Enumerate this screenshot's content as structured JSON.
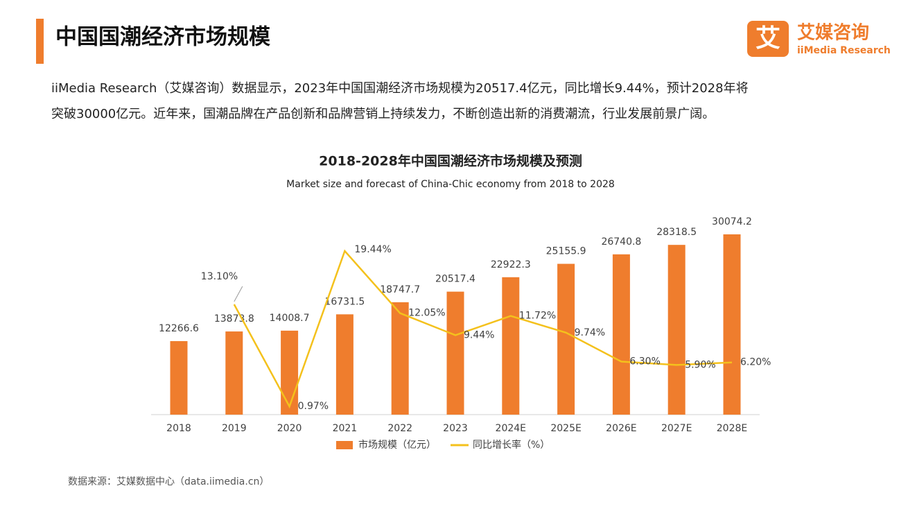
{
  "header": {
    "title": "中国国潮经济市场规模",
    "logo_mark": "艾",
    "logo_name": "艾媒咨询",
    "logo_sub": "iiMedia Research"
  },
  "paragraph": {
    "lines": [
      "iiMedia Research（艾媒咨询）数据显示，2023年中国国潮经济市场规模为20517.4亿元，同比增长9.44%，预计2028年将",
      "突破30000亿元。近年来，国潮品牌在产品创新和品牌营销上持续发力，不断创造出新的消费潮流，行业发展前景广阔。"
    ]
  },
  "chart_data": {
    "type": "bar-line",
    "title": "2018-2028年中国国潮经济市场规模及预测",
    "subtitle": "Market size and forecast of China-Chic economy from 2018 to 2028",
    "categories": [
      "2018",
      "2019",
      "2020",
      "2021",
      "2022",
      "2023",
      "2024E",
      "2025E",
      "2026E",
      "2027E",
      "2028E"
    ],
    "series": [
      {
        "name": "市场规模（亿元）",
        "type": "bar",
        "color": "#ef7d2d",
        "values": [
          12266.6,
          13873.8,
          14008.7,
          16731.5,
          18747.7,
          20517.4,
          22922.3,
          25155.9,
          26740.8,
          28318.5,
          30074.2
        ]
      },
      {
        "name": "同比增长率（%）",
        "type": "line",
        "axis": "y2",
        "color": "#f4c11c",
        "values": [
          null,
          13.1,
          0.97,
          19.44,
          12.05,
          9.44,
          11.72,
          9.74,
          6.3,
          5.9,
          6.2
        ],
        "value_labels": [
          null,
          "13.10%",
          "0.97%",
          "19.44%",
          "12.05%",
          "9.44%",
          "11.72%",
          "9.74%",
          "6.30%",
          "5.90%",
          "6.20%"
        ]
      }
    ]
  },
  "source": "数据来源：艾媒数据中心（data.iimedia.cn）"
}
